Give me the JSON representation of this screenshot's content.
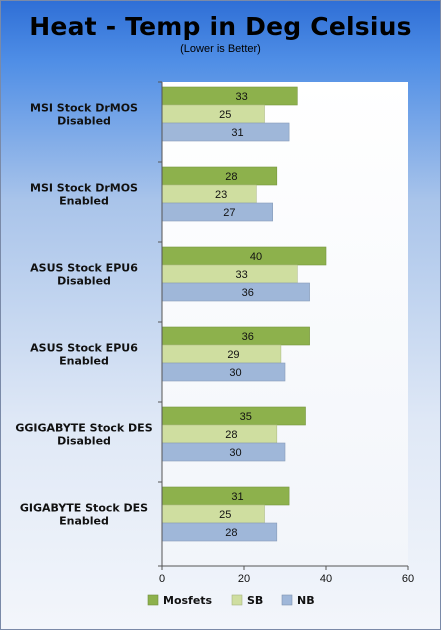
{
  "chart_data": {
    "type": "bar",
    "orientation": "horizontal",
    "title": "Heat - Temp in Deg Celsius",
    "subtitle": "(Lower is Better)",
    "categories": [
      [
        "MSI Stock DrMOS",
        "Disabled"
      ],
      [
        "MSI Stock DrMOS",
        "Enabled"
      ],
      [
        "ASUS Stock EPU6",
        "Disabled"
      ],
      [
        "ASUS Stock EPU6",
        "Enabled"
      ],
      [
        "GGIGABYTE Stock DES",
        "Disabled"
      ],
      [
        "GIGABYTE Stock DES",
        "Enabled"
      ]
    ],
    "series": [
      {
        "name": "Mosfets",
        "color": "#8db14c",
        "values": [
          33,
          28,
          40,
          36,
          35,
          31
        ]
      },
      {
        "name": "SB",
        "color": "#cfdea0",
        "values": [
          25,
          23,
          33,
          29,
          28,
          25
        ]
      },
      {
        "name": "NB",
        "color": "#9fb7d9",
        "values": [
          31,
          27,
          36,
          30,
          30,
          28
        ]
      }
    ],
    "xlim": [
      0,
      60
    ],
    "xticks": [
      "0",
      "20",
      "40",
      "60"
    ],
    "grid": false,
    "legend_position": "bottom"
  }
}
